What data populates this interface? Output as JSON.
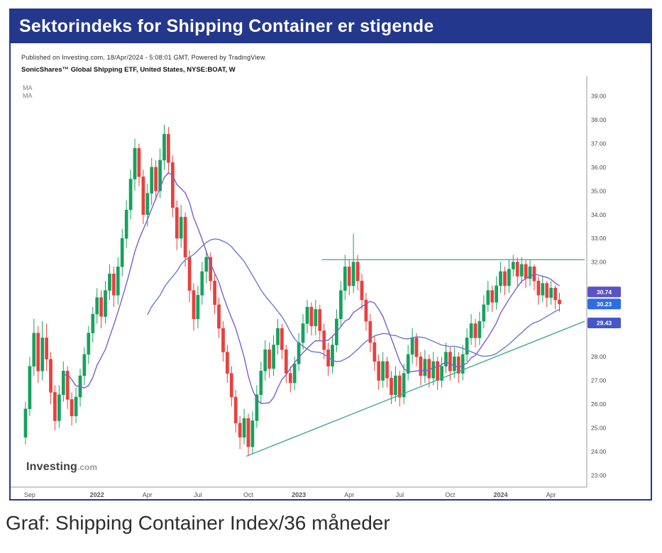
{
  "header": {
    "title": "Sektorindeks for Shipping Container er stigende"
  },
  "chart": {
    "published_line": "Published on Investing.com, 18/Apr/2024 - 5:08:01 GMT, Powered by TradingView.",
    "symbol_line": "SonicShares™ Global Shipping ETF, United States, NYSE:BOAT, W",
    "ma_labels": [
      "MA",
      "MA"
    ],
    "logo": {
      "name": "Investing",
      "suffix": ".com"
    }
  },
  "caption": "Graf: Shipping Container Index/36 måneder",
  "colors": {
    "banner_blue": "#23388c",
    "candle_up": "#16a15e",
    "candle_down": "#e8403d",
    "ma_fast": "#7d5fc7",
    "ma_slow": "#6b79cc",
    "trendline": "#3aa28f",
    "axis": "#999999",
    "tick_text": "#4a4a4a"
  },
  "chart_data": {
    "type": "candlestick",
    "title": "SonicShares™ Global Shipping ETF, United States, NYSE:BOAT, W",
    "interval": "Weekly",
    "ylim": [
      22.5,
      39.5
    ],
    "x_slots": 134,
    "grid": false,
    "legend_position": "top-left",
    "y_ticks": [
      39,
      38,
      37,
      36,
      35,
      34,
      33,
      32,
      28,
      27,
      26,
      25,
      24,
      23
    ],
    "x_axis_labels": [
      {
        "week": 1,
        "label": "Sep"
      },
      {
        "week": 17,
        "label": "2022"
      },
      {
        "week": 29,
        "label": "Apr"
      },
      {
        "week": 41,
        "label": "Jul"
      },
      {
        "week": 53,
        "label": "Oct"
      },
      {
        "week": 65,
        "label": "2023"
      },
      {
        "week": 77,
        "label": "Apr"
      },
      {
        "week": 89,
        "label": "Jul"
      },
      {
        "week": 101,
        "label": "Oct"
      },
      {
        "week": 113,
        "label": "2024"
      },
      {
        "week": 125,
        "label": "Apr"
      }
    ],
    "price_labels": [
      {
        "text": "30.74",
        "price": 30.74,
        "bg": "#5a52c7"
      },
      {
        "text": "30.23",
        "price": 30.23,
        "bg": "#2e6be6"
      },
      {
        "text": "29.43",
        "price": 29.43,
        "bg": "#4657c9"
      }
    ],
    "moving_averages": [
      {
        "name": "MA",
        "window": 10,
        "color": "#7d5fc7"
      },
      {
        "name": "MA",
        "window": 30,
        "color": "#6b79cc"
      }
    ],
    "trendlines": [
      {
        "type": "horizontal-resistance",
        "from_week": 71,
        "from_price": 32.1,
        "to_week": 133.5,
        "to_price": 32.1,
        "color": "#3aa28f"
      },
      {
        "type": "ascending-support",
        "from_week": 53,
        "from_price": 23.8,
        "to_week": 133.5,
        "to_price": 29.5,
        "color": "#3aa28f"
      }
    ],
    "candles_ohlc": [
      [
        24.6,
        26.1,
        24.3,
        25.8
      ],
      [
        25.8,
        28.0,
        25.5,
        27.6
      ],
      [
        27.6,
        29.6,
        27.2,
        29.0
      ],
      [
        29.0,
        29.3,
        26.9,
        27.4
      ],
      [
        27.4,
        29.5,
        27.0,
        28.8
      ],
      [
        28.8,
        29.4,
        27.4,
        27.9
      ],
      [
        27.9,
        28.2,
        26.0,
        26.5
      ],
      [
        26.5,
        26.8,
        24.9,
        25.3
      ],
      [
        25.3,
        26.8,
        25.0,
        26.4
      ],
      [
        26.4,
        27.8,
        26.1,
        27.4
      ],
      [
        27.4,
        27.6,
        25.8,
        26.2
      ],
      [
        26.2,
        26.5,
        25.1,
        25.5
      ],
      [
        25.5,
        26.7,
        25.2,
        26.3
      ],
      [
        26.3,
        27.5,
        25.9,
        27.2
      ],
      [
        27.2,
        28.4,
        26.8,
        28.1
      ],
      [
        28.1,
        29.3,
        27.7,
        29.0
      ],
      [
        29.0,
        30.1,
        28.6,
        29.8
      ],
      [
        29.8,
        30.9,
        29.4,
        30.5
      ],
      [
        30.5,
        30.8,
        29.2,
        29.7
      ],
      [
        29.7,
        31.2,
        29.4,
        30.8
      ],
      [
        30.8,
        31.9,
        30.4,
        31.5
      ],
      [
        31.5,
        31.8,
        30.1,
        30.6
      ],
      [
        30.6,
        32.2,
        30.2,
        31.8
      ],
      [
        31.8,
        33.4,
        31.4,
        33.0
      ],
      [
        33.0,
        34.6,
        32.6,
        34.2
      ],
      [
        34.2,
        35.9,
        33.8,
        35.5
      ],
      [
        35.5,
        37.2,
        35.0,
        36.8
      ],
      [
        36.8,
        37.0,
        35.2,
        35.6
      ],
      [
        35.6,
        35.9,
        33.6,
        34.0
      ],
      [
        34.0,
        35.3,
        33.5,
        34.9
      ],
      [
        34.9,
        36.4,
        34.4,
        36.0
      ],
      [
        36.0,
        36.3,
        34.6,
        35.0
      ],
      [
        35.0,
        36.8,
        34.7,
        36.3
      ],
      [
        36.3,
        37.8,
        35.9,
        37.4
      ],
      [
        37.4,
        37.7,
        35.8,
        36.2
      ],
      [
        36.2,
        36.5,
        33.9,
        34.3
      ],
      [
        34.3,
        34.6,
        32.5,
        33.0
      ],
      [
        33.0,
        34.4,
        32.6,
        33.9
      ],
      [
        33.9,
        34.1,
        31.8,
        32.2
      ],
      [
        32.2,
        32.5,
        30.3,
        30.8
      ],
      [
        30.8,
        31.1,
        29.1,
        29.6
      ],
      [
        29.6,
        31.0,
        29.2,
        30.6
      ],
      [
        30.6,
        32.0,
        30.2,
        31.6
      ],
      [
        31.6,
        32.5,
        31.1,
        32.2
      ],
      [
        32.2,
        32.4,
        30.8,
        31.2
      ],
      [
        31.2,
        31.5,
        29.8,
        30.2
      ],
      [
        30.2,
        30.5,
        28.8,
        29.2
      ],
      [
        29.2,
        29.5,
        27.8,
        28.2
      ],
      [
        28.2,
        28.5,
        26.9,
        27.3
      ],
      [
        27.3,
        27.6,
        25.9,
        26.3
      ],
      [
        26.3,
        26.6,
        24.8,
        25.2
      ],
      [
        25.2,
        25.5,
        24.1,
        24.6
      ],
      [
        24.6,
        25.8,
        24.3,
        25.4
      ],
      [
        25.4,
        25.6,
        23.8,
        24.2
      ],
      [
        24.2,
        25.7,
        23.9,
        25.3
      ],
      [
        25.3,
        26.8,
        25.0,
        26.4
      ],
      [
        26.4,
        27.8,
        26.0,
        27.4
      ],
      [
        27.4,
        28.7,
        27.0,
        28.3
      ],
      [
        28.3,
        28.6,
        27.1,
        27.5
      ],
      [
        27.5,
        28.9,
        27.2,
        28.5
      ],
      [
        28.5,
        29.6,
        28.1,
        29.2
      ],
      [
        29.2,
        29.4,
        27.9,
        28.3
      ],
      [
        28.3,
        28.5,
        26.9,
        27.3
      ],
      [
        27.3,
        27.6,
        26.5,
        26.9
      ],
      [
        26.9,
        28.0,
        26.6,
        27.7
      ],
      [
        27.7,
        29.0,
        27.4,
        28.6
      ],
      [
        28.6,
        29.8,
        28.3,
        29.4
      ],
      [
        29.4,
        30.4,
        29.0,
        30.1
      ],
      [
        30.1,
        30.3,
        28.9,
        29.3
      ],
      [
        29.3,
        30.4,
        28.9,
        30.0
      ],
      [
        30.0,
        30.2,
        28.7,
        29.1
      ],
      [
        29.1,
        29.4,
        27.9,
        28.3
      ],
      [
        28.3,
        28.6,
        27.2,
        27.6
      ],
      [
        27.6,
        28.9,
        27.3,
        28.5
      ],
      [
        28.5,
        30.0,
        28.2,
        29.6
      ],
      [
        29.6,
        31.2,
        29.3,
        30.8
      ],
      [
        30.8,
        32.3,
        30.4,
        31.8
      ],
      [
        31.8,
        32.1,
        30.6,
        31.0
      ],
      [
        31.0,
        33.2,
        30.7,
        32.0
      ],
      [
        32.0,
        32.3,
        30.8,
        31.2
      ],
      [
        31.2,
        31.5,
        30.0,
        30.4
      ],
      [
        30.4,
        30.7,
        29.1,
        29.5
      ],
      [
        29.5,
        29.8,
        28.2,
        28.6
      ],
      [
        28.6,
        28.9,
        27.4,
        27.8
      ],
      [
        27.8,
        28.1,
        26.6,
        27.0
      ],
      [
        27.0,
        28.2,
        26.7,
        27.8
      ],
      [
        27.8,
        28.0,
        26.7,
        27.1
      ],
      [
        27.1,
        27.4,
        26.0,
        26.4
      ],
      [
        26.4,
        27.6,
        26.1,
        27.2
      ],
      [
        27.2,
        27.4,
        25.9,
        26.3
      ],
      [
        26.3,
        27.7,
        26.0,
        27.3
      ],
      [
        27.3,
        28.5,
        27.0,
        28.1
      ],
      [
        28.1,
        29.2,
        27.7,
        28.8
      ],
      [
        28.8,
        29.0,
        27.6,
        28.0
      ],
      [
        28.0,
        28.2,
        26.8,
        27.2
      ],
      [
        27.2,
        28.3,
        26.9,
        27.9
      ],
      [
        27.9,
        28.1,
        26.7,
        27.1
      ],
      [
        27.1,
        28.2,
        26.8,
        27.8
      ],
      [
        27.8,
        28.0,
        26.6,
        27.0
      ],
      [
        27.0,
        28.0,
        26.7,
        27.6
      ],
      [
        27.6,
        28.6,
        27.3,
        28.2
      ],
      [
        28.2,
        28.4,
        27.0,
        27.4
      ],
      [
        27.4,
        28.4,
        27.1,
        28.0
      ],
      [
        28.0,
        28.2,
        26.9,
        27.3
      ],
      [
        27.3,
        28.5,
        27.0,
        28.1
      ],
      [
        28.1,
        29.2,
        27.8,
        28.8
      ],
      [
        28.8,
        29.8,
        28.5,
        29.4
      ],
      [
        29.4,
        29.6,
        28.4,
        28.8
      ],
      [
        28.8,
        29.9,
        28.5,
        29.5
      ],
      [
        29.5,
        30.6,
        29.2,
        30.2
      ],
      [
        30.2,
        31.2,
        29.9,
        30.8
      ],
      [
        30.8,
        31.0,
        29.9,
        30.3
      ],
      [
        30.3,
        31.4,
        30.0,
        31.0
      ],
      [
        31.0,
        32.0,
        30.7,
        31.6
      ],
      [
        31.6,
        31.8,
        30.6,
        31.0
      ],
      [
        31.0,
        32.1,
        30.7,
        31.7
      ],
      [
        31.7,
        32.3,
        31.4,
        32.0
      ],
      [
        32.0,
        32.2,
        31.0,
        31.4
      ],
      [
        31.4,
        32.2,
        31.1,
        31.9
      ],
      [
        31.9,
        32.1,
        30.9,
        31.3
      ],
      [
        31.3,
        32.1,
        31.0,
        31.8
      ],
      [
        31.8,
        31.9,
        30.8,
        31.2
      ],
      [
        31.2,
        31.4,
        30.2,
        30.6
      ],
      [
        30.6,
        31.4,
        30.3,
        31.1
      ],
      [
        31.1,
        31.2,
        30.1,
        30.5
      ],
      [
        30.5,
        31.2,
        30.2,
        30.9
      ],
      [
        30.9,
        31.0,
        30.0,
        30.4
      ],
      [
        30.4,
        30.7,
        29.9,
        30.23
      ]
    ]
  }
}
